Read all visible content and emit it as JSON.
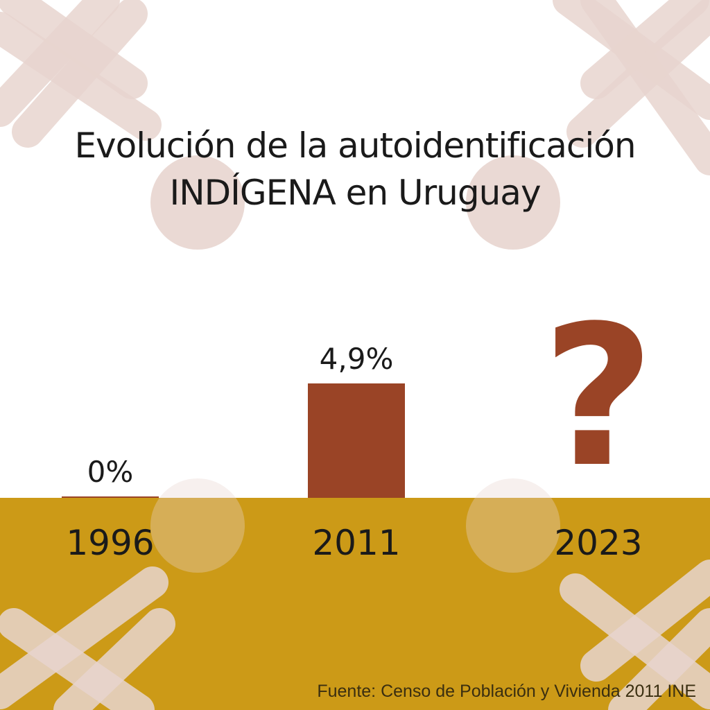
{
  "title_lines": [
    "Evolución de la autoidentificación",
    "INDÍGENA en Uruguay"
  ],
  "source": "Fuente: Censo de Población y Vivienda 2011 INE",
  "colors": {
    "bar": "#9a4426",
    "ground": "#cc9a17",
    "decoration": "#e8d5cf"
  },
  "chart_data": {
    "type": "bar",
    "categories": [
      "1996",
      "2011",
      "2023"
    ],
    "values": [
      0,
      4.9,
      null
    ],
    "value_labels": [
      "0%",
      "4,9%",
      "?"
    ],
    "unit": "%",
    "ylim": [
      0,
      4.9
    ],
    "grid": false,
    "legend": "none"
  }
}
